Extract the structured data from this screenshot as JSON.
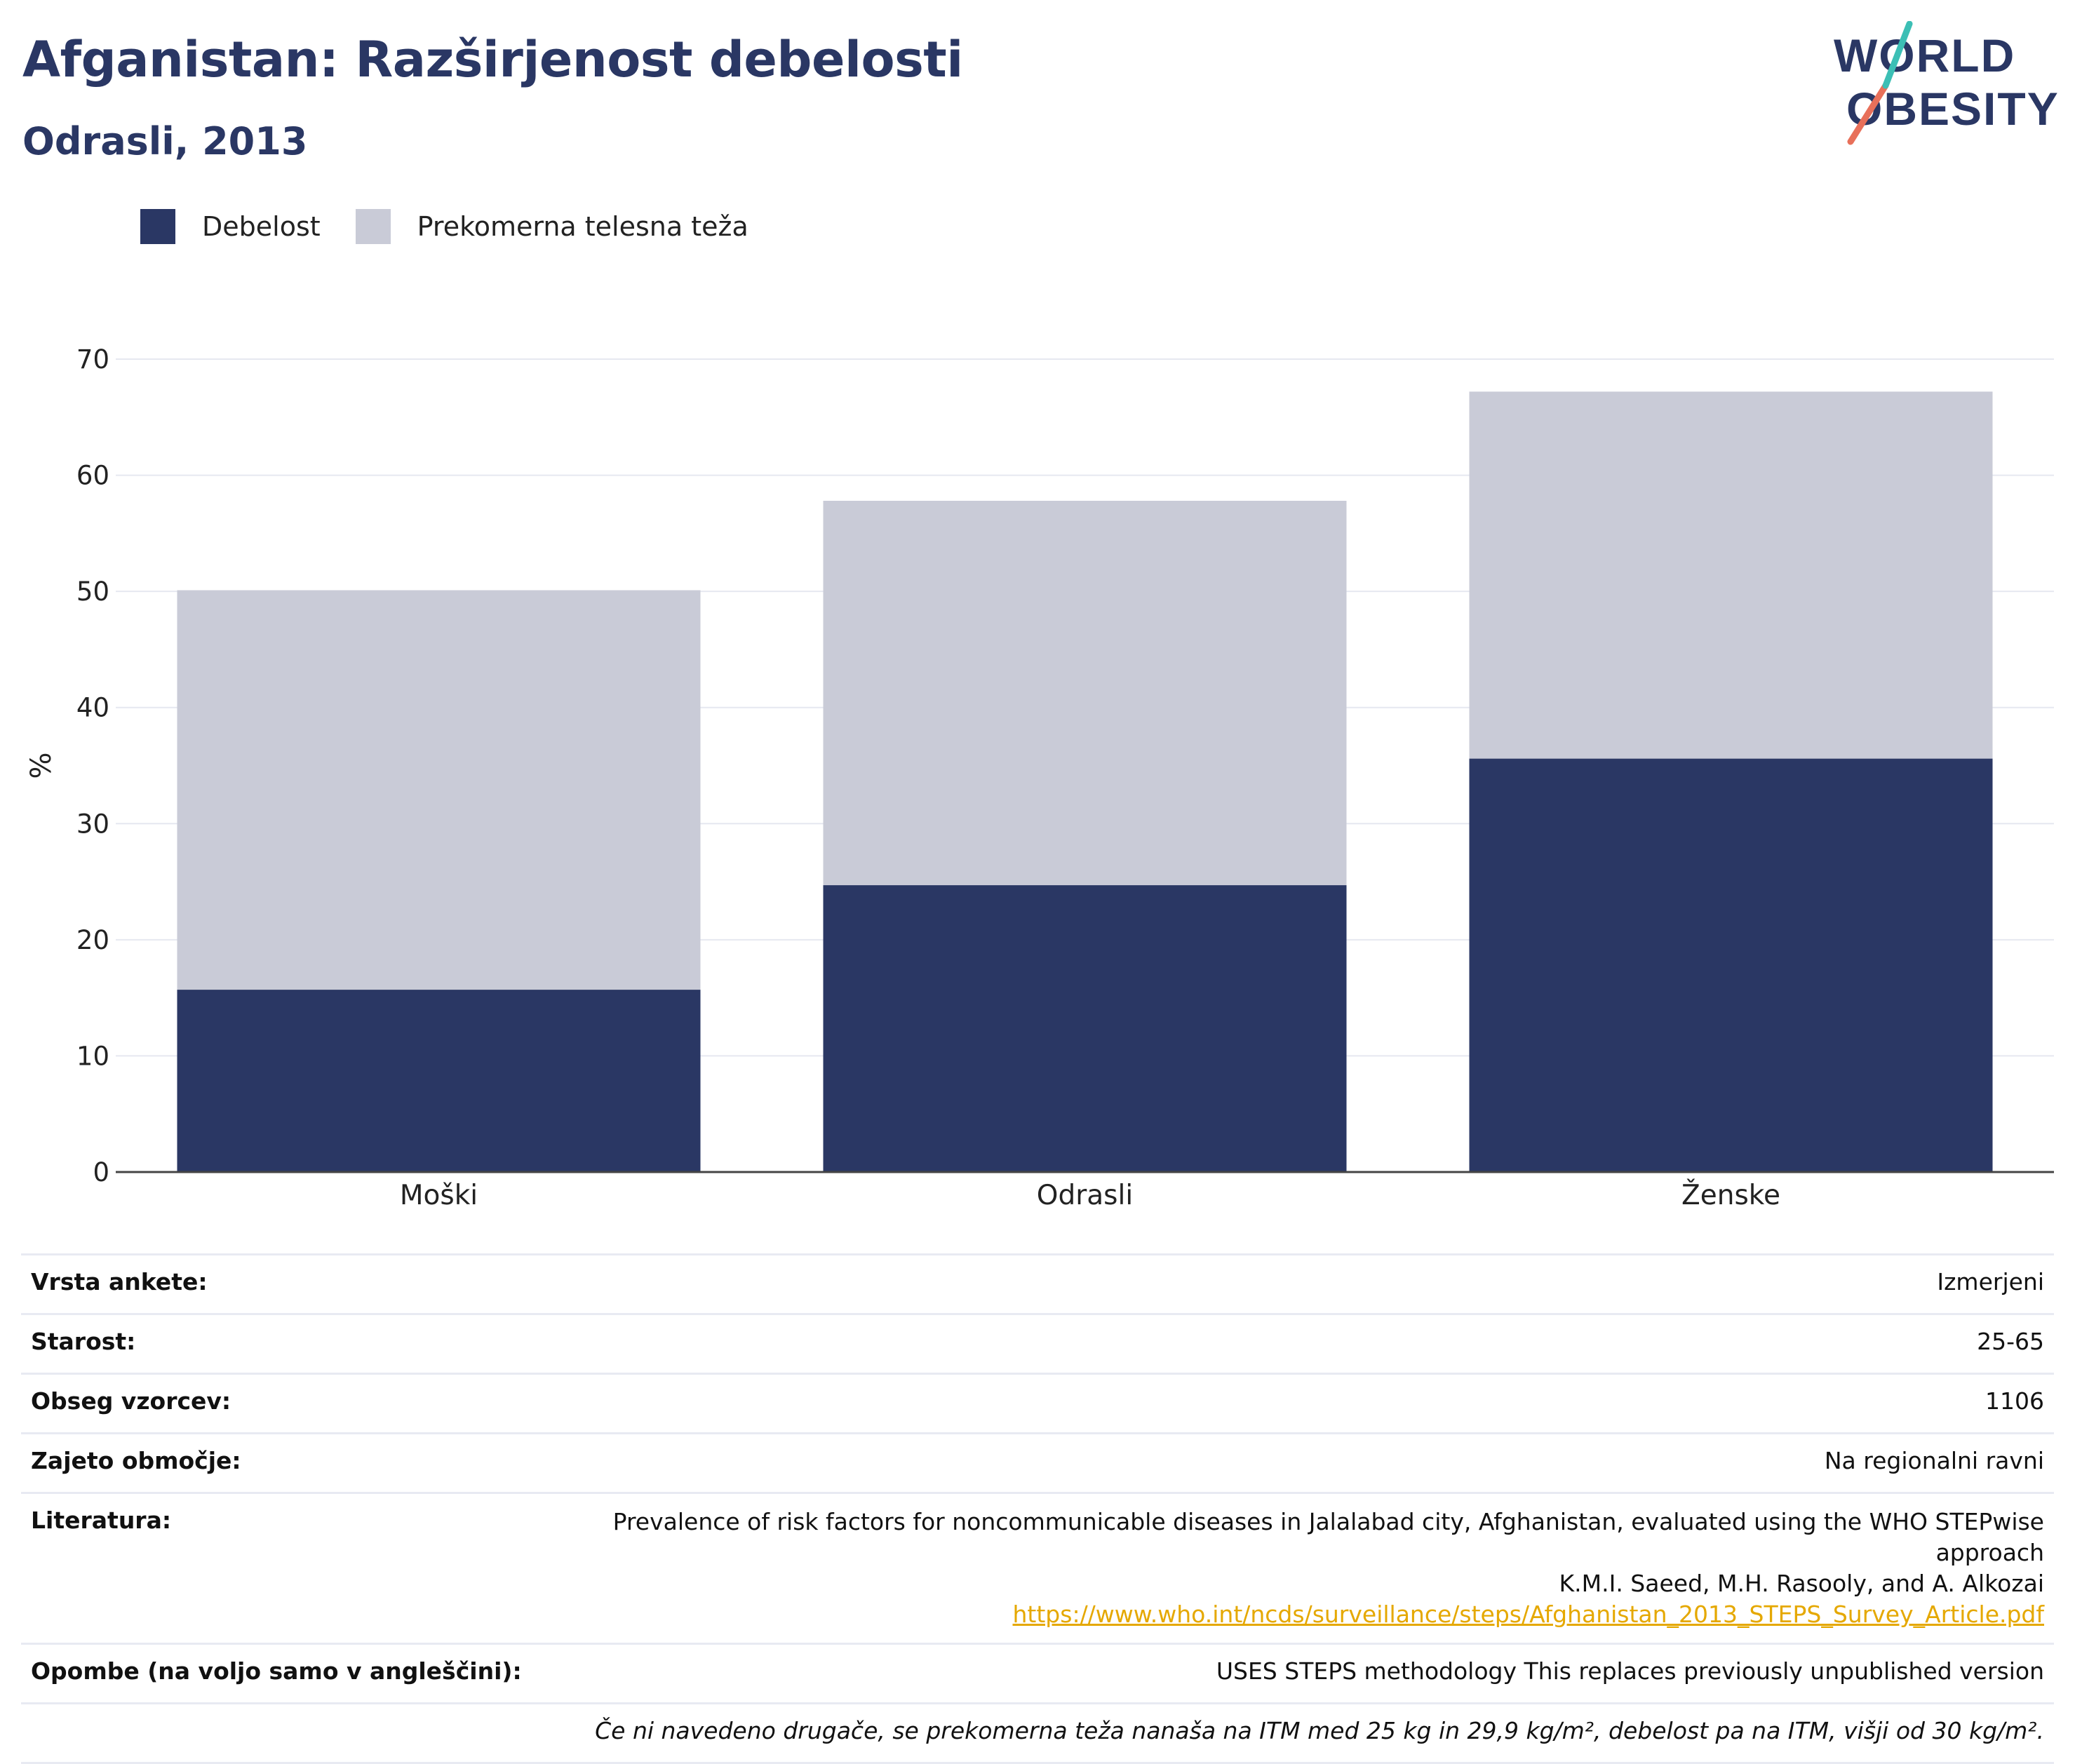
{
  "header": {
    "title": "Afganistan: Razširjenost debelosti",
    "subtitle": "Odrasli, 2013"
  },
  "logo": {
    "line1": "WORLD",
    "line2": "OBESITY"
  },
  "colors": {
    "obesity": "#2a3764",
    "overweight": "#c9cbd7",
    "title": "#2a3764",
    "logo_slash_red": "#e8705a",
    "logo_slash_teal": "#3cbfb5",
    "link": "#e5a800"
  },
  "legend": [
    {
      "label": "Debelost",
      "color": "#2a3764"
    },
    {
      "label": "Prekomerna telesna teža",
      "color": "#c9cbd7"
    }
  ],
  "chart_data": {
    "type": "bar",
    "stacked": true,
    "categories": [
      "Moški",
      "Odrasli",
      "Ženske"
    ],
    "series": [
      {
        "name": "Debelost",
        "values": [
          15.7,
          24.7,
          35.6
        ]
      },
      {
        "name": "Prekomerna telesna teža",
        "values": [
          34.4,
          33.1,
          31.6
        ]
      }
    ],
    "ylabel": "%",
    "ylim": [
      0,
      70
    ],
    "yticks": [
      0,
      10,
      20,
      30,
      40,
      50,
      60,
      70
    ],
    "grid": true,
    "legend_position": "top-left"
  },
  "info": {
    "survey_type": {
      "label": "Vrsta ankete:",
      "value": "Izmerjeni"
    },
    "age": {
      "label": "Starost:",
      "value": "25-65"
    },
    "sample": {
      "label": "Obseg vzorcev:",
      "value": "1106"
    },
    "area": {
      "label": "Zajeto območje:",
      "value": "Na regionalni ravni"
    },
    "literature": {
      "label": "Literatura:",
      "line1": "Prevalence of risk factors for noncommunicable diseases in Jalalabad city, Afghanistan, evaluated using the WHO STEPwise approach",
      "line2_prefix": "K.M.I. Saeed, M.H. Rasooly, and A. Alkozai ",
      "link": "https://www.who.int/ncds/surveillance/steps/Afghanistan_2013_STEPS_Survey_Article.pdf"
    },
    "notes": {
      "label": "Opombe (na voljo samo v angleščini):",
      "value": "USES STEPS methodology This replaces previously unpublished version"
    },
    "footnote": "Če ni navedeno drugače, se prekomerna teža nanaša na ITM med 25 kg in 29,9 kg/m², debelost pa na ITM, višji od 30 kg/m²."
  }
}
